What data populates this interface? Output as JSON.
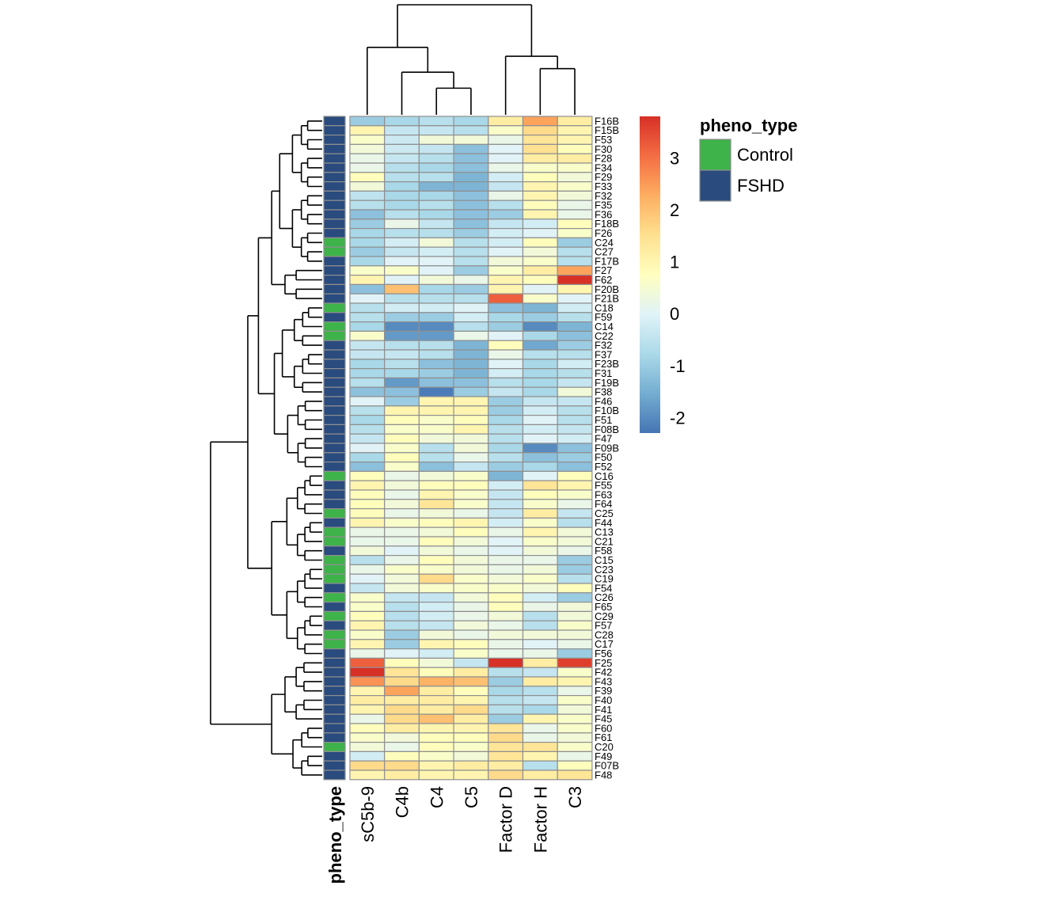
{
  "chart_data": {
    "type": "heatmap",
    "title": "",
    "columns": [
      "sC5b-9",
      "C4b",
      "C4",
      "C5",
      "Factor D",
      "Factor H",
      "C3"
    ],
    "rows": [
      "F16B",
      "F15B",
      "F53",
      "F30",
      "F28",
      "F34",
      "F29",
      "F33",
      "F32",
      "F35",
      "F36",
      "F18B",
      "F26",
      "C24",
      "C27",
      "F17B",
      "F27",
      "F62",
      "F20B",
      "F21B",
      "C18",
      "F59",
      "C14",
      "C22",
      "F32",
      "F37",
      "F23B",
      "F31",
      "F19B",
      "F38",
      "F46",
      "F10B",
      "F51",
      "F08B",
      "F47",
      "F09B",
      "F50",
      "F52",
      "C16",
      "F55",
      "F63",
      "F64",
      "C25",
      "F44",
      "C13",
      "C21",
      "F58",
      "C15",
      "C23",
      "C19",
      "F54",
      "C26",
      "F65",
      "C29",
      "F57",
      "C28",
      "C17",
      "F56",
      "F25",
      "F42",
      "F43",
      "F39",
      "F40",
      "F41",
      "F45",
      "F60",
      "F61",
      "C20",
      "F49",
      "F07B",
      "F48"
    ],
    "row_annotation_name": "pheno_type",
    "row_annotation": [
      "FSHD",
      "FSHD",
      "FSHD",
      "FSHD",
      "FSHD",
      "FSHD",
      "FSHD",
      "FSHD",
      "FSHD",
      "FSHD",
      "FSHD",
      "FSHD",
      "FSHD",
      "Control",
      "Control",
      "FSHD",
      "FSHD",
      "FSHD",
      "FSHD",
      "FSHD",
      "Control",
      "FSHD",
      "Control",
      "Control",
      "FSHD",
      "FSHD",
      "FSHD",
      "FSHD",
      "FSHD",
      "FSHD",
      "FSHD",
      "FSHD",
      "FSHD",
      "FSHD",
      "FSHD",
      "FSHD",
      "FSHD",
      "FSHD",
      "Control",
      "FSHD",
      "FSHD",
      "FSHD",
      "Control",
      "FSHD",
      "Control",
      "Control",
      "FSHD",
      "Control",
      "Control",
      "Control",
      "FSHD",
      "Control",
      "FSHD",
      "Control",
      "FSHD",
      "Control",
      "Control",
      "FSHD",
      "FSHD",
      "FSHD",
      "FSHD",
      "FSHD",
      "FSHD",
      "FSHD",
      "FSHD",
      "FSHD",
      "FSHD",
      "Control",
      "FSHD",
      "FSHD",
      "FSHD"
    ],
    "values": [
      [
        -1.0,
        -0.8,
        -0.6,
        -0.8,
        1.2,
        2.4,
        1.2
      ],
      [
        1.0,
        -0.4,
        -0.4,
        -0.6,
        0.6,
        1.6,
        1.0
      ],
      [
        0.6,
        -0.3,
        0.4,
        0.4,
        0.2,
        1.4,
        1.0
      ],
      [
        0.4,
        -0.3,
        -0.4,
        -1.2,
        0.0,
        1.5,
        0.8
      ],
      [
        0.2,
        -0.4,
        -0.6,
        -1.2,
        0.0,
        1.2,
        1.2
      ],
      [
        0.2,
        -0.6,
        -0.8,
        -1.2,
        0.2,
        0.6,
        0.6
      ],
      [
        0.8,
        -0.6,
        -0.6,
        -1.4,
        -0.2,
        0.8,
        0.4
      ],
      [
        0.4,
        -0.8,
        -1.4,
        -1.4,
        -0.4,
        1.0,
        0.6
      ],
      [
        -0.5,
        -0.8,
        -0.8,
        -1.2,
        0.2,
        1.0,
        0.4
      ],
      [
        -0.6,
        -0.8,
        -0.6,
        -1.2,
        -0.6,
        0.8,
        0.2
      ],
      [
        -1.2,
        -0.6,
        -0.8,
        -1.2,
        -1.0,
        1.0,
        0.2
      ],
      [
        -1.0,
        0.2,
        -0.4,
        -1.2,
        -0.4,
        -0.2,
        0.8
      ],
      [
        -0.8,
        -0.6,
        -0.6,
        -1.0,
        -0.2,
        0.0,
        0.6
      ],
      [
        -0.8,
        -0.2,
        0.4,
        -0.6,
        -0.2,
        0.8,
        -1.0
      ],
      [
        -1.0,
        -0.4,
        -0.2,
        -0.6,
        0.0,
        0.4,
        -0.6
      ],
      [
        -0.8,
        0.0,
        0.0,
        -0.6,
        0.4,
        0.6,
        -0.6
      ],
      [
        0.6,
        0.6,
        0.0,
        -1.0,
        0.6,
        1.2,
        2.4
      ],
      [
        1.0,
        0.0,
        0.4,
        0.2,
        1.0,
        0.8,
        3.8
      ],
      [
        -1.2,
        2.0,
        -0.8,
        -1.0,
        1.0,
        0.0,
        1.0
      ],
      [
        0.0,
        -0.6,
        -0.6,
        -0.6,
        3.2,
        0.6,
        0.0
      ],
      [
        -0.6,
        -0.2,
        -0.2,
        0.0,
        -1.2,
        -1.4,
        -0.2
      ],
      [
        -0.6,
        -1.0,
        -1.0,
        -0.2,
        -0.8,
        -1.0,
        -0.6
      ],
      [
        -0.8,
        -2.0,
        -2.0,
        -0.6,
        -1.0,
        -2.0,
        -1.4
      ],
      [
        0.6,
        -1.8,
        -1.8,
        0.2,
        0.0,
        -0.8,
        -1.2
      ],
      [
        -0.4,
        -0.6,
        -0.6,
        -1.4,
        0.8,
        -1.6,
        -1.0
      ],
      [
        -0.4,
        -0.4,
        -0.6,
        -1.4,
        0.2,
        -0.6,
        -0.6
      ],
      [
        -0.8,
        -0.6,
        -1.2,
        -1.4,
        0.0,
        -0.8,
        -0.2
      ],
      [
        -0.8,
        -0.8,
        -1.0,
        -1.4,
        -0.2,
        -0.8,
        -0.6
      ],
      [
        -0.6,
        -1.8,
        -1.2,
        -1.2,
        -0.6,
        -0.8,
        -0.4
      ],
      [
        -1.2,
        -1.2,
        -2.2,
        -1.0,
        -0.4,
        -0.8,
        0.4
      ],
      [
        0.0,
        -1.0,
        1.0,
        1.0,
        -1.0,
        -0.4,
        -0.4
      ],
      [
        -0.6,
        1.0,
        1.0,
        1.0,
        -1.0,
        -0.2,
        -0.6
      ],
      [
        -0.8,
        0.8,
        0.6,
        0.8,
        -0.8,
        0.0,
        -0.6
      ],
      [
        -0.6,
        0.6,
        0.6,
        1.0,
        -0.6,
        -0.2,
        -0.4
      ],
      [
        -0.4,
        0.8,
        0.4,
        0.4,
        -0.6,
        0.0,
        -0.2
      ],
      [
        0.0,
        0.6,
        -0.6,
        0.4,
        -0.8,
        -2.0,
        -1.2
      ],
      [
        -0.8,
        0.8,
        -0.6,
        0.2,
        -0.6,
        -1.2,
        -1.0
      ],
      [
        -1.2,
        0.6,
        -1.2,
        -0.4,
        -1.0,
        -0.8,
        -1.2
      ],
      [
        0.8,
        0.2,
        0.4,
        0.6,
        -1.4,
        0.0,
        0.8
      ],
      [
        1.0,
        0.4,
        0.8,
        0.8,
        -0.2,
        1.4,
        1.0
      ],
      [
        0.8,
        0.2,
        1.0,
        0.6,
        -0.4,
        0.8,
        0.6
      ],
      [
        0.8,
        0.4,
        1.4,
        0.6,
        -0.4,
        0.6,
        0.2
      ],
      [
        0.8,
        0.2,
        0.4,
        0.2,
        -0.4,
        1.2,
        -0.4
      ],
      [
        1.0,
        0.6,
        0.8,
        1.0,
        -0.2,
        0.6,
        -0.6
      ],
      [
        0.2,
        0.2,
        0.4,
        0.8,
        0.2,
        1.0,
        0.4
      ],
      [
        0.2,
        0.2,
        0.8,
        0.4,
        0.0,
        0.6,
        0.4
      ],
      [
        0.4,
        0.0,
        0.4,
        0.2,
        0.0,
        0.4,
        0.2
      ],
      [
        -0.6,
        0.2,
        0.8,
        0.4,
        0.2,
        0.2,
        -1.0
      ],
      [
        0.2,
        0.6,
        0.6,
        0.4,
        0.2,
        0.4,
        -1.0
      ],
      [
        0.0,
        0.4,
        1.6,
        0.6,
        0.4,
        0.6,
        -0.6
      ],
      [
        -0.4,
        0.4,
        0.6,
        0.6,
        0.6,
        0.4,
        0.8
      ],
      [
        0.6,
        -0.4,
        -0.4,
        0.4,
        0.8,
        -0.2,
        -1.0
      ],
      [
        0.6,
        -0.6,
        -0.2,
        0.2,
        0.8,
        0.2,
        0.4
      ],
      [
        0.8,
        -0.6,
        -0.2,
        0.2,
        0.4,
        -0.6,
        0.4
      ],
      [
        1.0,
        -0.6,
        -0.4,
        0.4,
        0.2,
        -0.6,
        0.6
      ],
      [
        0.6,
        -1.0,
        0.4,
        0.2,
        0.4,
        0.4,
        0.4
      ],
      [
        1.0,
        -1.0,
        1.0,
        0.8,
        0.2,
        0.0,
        0.2
      ],
      [
        0.2,
        0.0,
        -0.2,
        0.6,
        0.2,
        0.2,
        -1.0
      ],
      [
        3.2,
        0.8,
        0.4,
        -0.4,
        3.8,
        1.2,
        3.6
      ],
      [
        3.8,
        1.4,
        0.8,
        1.2,
        -0.6,
        -0.4,
        0.6
      ],
      [
        2.6,
        1.6,
        2.2,
        2.0,
        -1.0,
        1.2,
        1.0
      ],
      [
        1.0,
        2.4,
        1.2,
        0.8,
        -0.8,
        -0.6,
        0.2
      ],
      [
        1.2,
        1.2,
        1.2,
        1.0,
        -0.6,
        -0.4,
        0.6
      ],
      [
        1.0,
        1.6,
        1.2,
        1.6,
        -0.6,
        -0.8,
        0.4
      ],
      [
        0.2,
        1.6,
        2.0,
        1.2,
        -1.0,
        1.0,
        0.6
      ],
      [
        0.8,
        1.2,
        1.0,
        1.0,
        1.4,
        0.2,
        0.6
      ],
      [
        0.6,
        0.4,
        0.8,
        0.8,
        1.6,
        0.2,
        0.4
      ],
      [
        0.4,
        0.2,
        0.8,
        0.6,
        1.4,
        1.4,
        0.6
      ],
      [
        -0.2,
        0.8,
        0.6,
        0.4,
        1.4,
        1.0,
        0.2
      ],
      [
        1.6,
        1.6,
        1.0,
        1.2,
        1.2,
        -0.6,
        0.8
      ],
      [
        1.0,
        1.2,
        1.0,
        1.0,
        1.6,
        1.2,
        1.4
      ]
    ],
    "color_scale": {
      "min": -2.3,
      "max": 3.8,
      "colors": [
        "#4575b4",
        "#74add1",
        "#abd9e9",
        "#e0f3f8",
        "#ffffbf",
        "#fee090",
        "#fdae61",
        "#f46d43",
        "#d73027"
      ],
      "ticks": [
        -2,
        -1,
        0,
        1,
        2,
        3
      ]
    },
    "legend": {
      "title": "pheno_type",
      "entries": [
        {
          "label": "Control",
          "color": "#3db34a"
        },
        {
          "label": "FSHD",
          "color": "#294b7e"
        }
      ]
    },
    "col_dendrogram_order": [
      0,
      1,
      2,
      3,
      4,
      5,
      6
    ],
    "row_dendrogram": true
  }
}
